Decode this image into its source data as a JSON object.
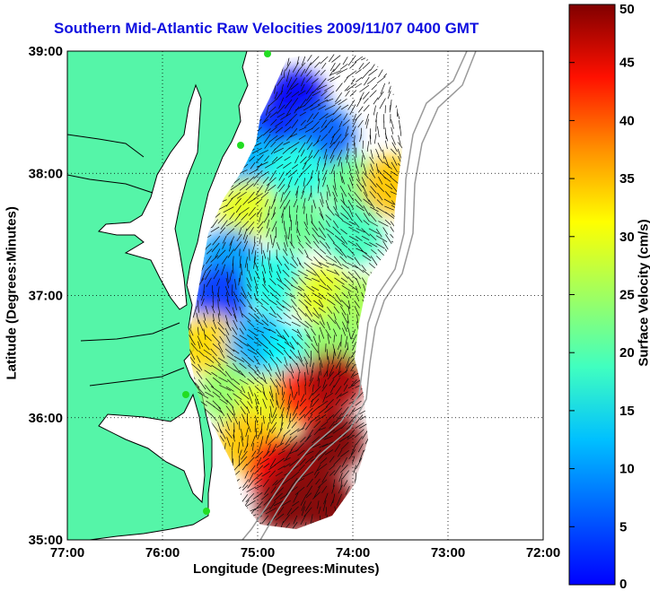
{
  "title": "Southern Mid-Atlantic Raw Velocities 2009/11/07 0400 GMT",
  "xlabel": "Longitude (Degrees:Minutes)",
  "ylabel": "Latitude (Degrees:Minutes)",
  "colorbar_label": "Surface Velocity (cm/s)",
  "colors": {
    "land": "#55f5a8",
    "grid": "#000000",
    "coast": "#000000",
    "bathymetry": "#9a9a9a",
    "station": "#22dd22"
  },
  "chart_data": {
    "type": "heatmap",
    "title": "Southern Mid-Atlantic Raw Velocities 2009/11/07 0400 GMT",
    "xlabel": "Longitude (Degrees:Minutes)",
    "ylabel": "Latitude (Degrees:Minutes)",
    "x_ticks": [
      "77:00",
      "76:00",
      "75:00",
      "74:00",
      "73:00",
      "72:00"
    ],
    "x_tick_values": [
      -77,
      -76,
      -75,
      -74,
      -73,
      -72
    ],
    "y_ticks": [
      "39:00",
      "38:00",
      "37:00",
      "36:00",
      "35:00"
    ],
    "y_tick_values": [
      39,
      38,
      37,
      36,
      35
    ],
    "xlim": [
      -77,
      -72
    ],
    "ylim": [
      35,
      39
    ],
    "grid": true,
    "colorbar": {
      "label": "Surface Velocity (cm/s)",
      "range": [
        0,
        50
      ],
      "ticks": [
        0,
        5,
        10,
        15,
        20,
        25,
        30,
        35,
        40,
        45,
        50
      ],
      "colormap": "jet"
    },
    "regions": [
      {
        "lon": -74.6,
        "lat": 38.6,
        "speed": 6
      },
      {
        "lon": -74.9,
        "lat": 38.3,
        "speed": 8
      },
      {
        "lon": -74.3,
        "lat": 38.3,
        "speed": 11
      },
      {
        "lon": -75.1,
        "lat": 38.1,
        "speed": 15
      },
      {
        "lon": -74.6,
        "lat": 38.0,
        "speed": 20
      },
      {
        "lon": -74.0,
        "lat": 37.9,
        "speed": 24
      },
      {
        "lon": -73.6,
        "lat": 37.9,
        "speed": 34
      },
      {
        "lon": -75.1,
        "lat": 37.7,
        "speed": 30
      },
      {
        "lon": -74.6,
        "lat": 37.6,
        "speed": 24
      },
      {
        "lon": -74.0,
        "lat": 37.5,
        "speed": 22
      },
      {
        "lon": -75.3,
        "lat": 37.3,
        "speed": 14
      },
      {
        "lon": -75.4,
        "lat": 37.0,
        "speed": 9
      },
      {
        "lon": -74.8,
        "lat": 37.1,
        "speed": 20
      },
      {
        "lon": -74.3,
        "lat": 37.0,
        "speed": 30
      },
      {
        "lon": -73.9,
        "lat": 36.9,
        "speed": 27
      },
      {
        "lon": -75.5,
        "lat": 36.6,
        "speed": 33
      },
      {
        "lon": -75.0,
        "lat": 36.6,
        "speed": 15
      },
      {
        "lon": -74.6,
        "lat": 36.5,
        "speed": 19
      },
      {
        "lon": -74.2,
        "lat": 36.6,
        "speed": 26
      },
      {
        "lon": -75.3,
        "lat": 36.2,
        "speed": 26
      },
      {
        "lon": -74.9,
        "lat": 36.1,
        "speed": 30
      },
      {
        "lon": -74.5,
        "lat": 36.2,
        "speed": 42
      },
      {
        "lon": -74.2,
        "lat": 36.3,
        "speed": 48
      },
      {
        "lon": -75.1,
        "lat": 35.8,
        "speed": 34
      },
      {
        "lon": -74.8,
        "lat": 35.6,
        "speed": 44
      },
      {
        "lon": -74.5,
        "lat": 35.6,
        "speed": 49
      },
      {
        "lon": -74.2,
        "lat": 35.8,
        "speed": 50
      },
      {
        "lon": -74.7,
        "lat": 35.3,
        "speed": 50
      },
      {
        "lon": -74.3,
        "lat": 35.3,
        "speed": 50
      }
    ]
  }
}
